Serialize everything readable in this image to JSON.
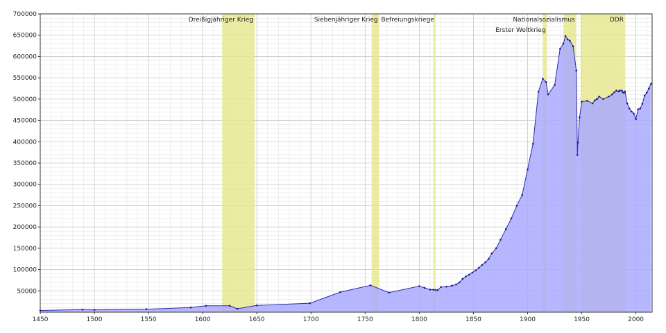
{
  "chart_data": {
    "type": "area",
    "title": "",
    "xlabel": "",
    "ylabel": "",
    "xlim": [
      1450,
      2015
    ],
    "ylim": [
      0,
      700000
    ],
    "grid": true,
    "x_ticks": [
      1450,
      1500,
      1550,
      1600,
      1650,
      1700,
      1750,
      1800,
      1850,
      1900,
      1950,
      2000
    ],
    "y_ticks": [
      50000,
      100000,
      150000,
      200000,
      250000,
      300000,
      350000,
      400000,
      450000,
      500000,
      550000,
      600000,
      650000,
      700000
    ],
    "x_tick_labels": [
      "1450",
      "1500",
      "1550",
      "1600",
      "1650",
      "1700",
      "1750",
      "1800",
      "1850",
      "1900",
      "1950",
      "2000"
    ],
    "y_tick_labels": [
      "50000",
      "100000",
      "150000",
      "200000",
      "250000",
      "300000",
      "350000",
      "400000",
      "450000",
      "500000",
      "550000",
      "600000",
      "650000",
      "700000"
    ],
    "colors": {
      "area_fill": "#aaaaff",
      "line": "#2a2ab0",
      "marker": "#1a1a80",
      "period_fill": "#e6e68c",
      "grid_major": "#c8c8c8",
      "grid_minor": "#e6e6e6"
    },
    "periods": [
      {
        "label": "Dreißigjähriger Krieg",
        "start": 1618,
        "end": 1648,
        "label_row": 1
      },
      {
        "label": "Siebenjähriger Krieg",
        "start": 1756,
        "end": 1763,
        "label_row": 1
      },
      {
        "label": "Befreiungskriege",
        "start": 1813,
        "end": 1815,
        "label_row": 1
      },
      {
        "label": "Nationalsozialismus",
        "start": 1933,
        "end": 1945,
        "label_row": 1
      },
      {
        "label": "Erster Weltkrieg",
        "start": 1914,
        "end": 1918,
        "label_row": 2
      },
      {
        "label": "DDR",
        "start": 1949,
        "end": 1990,
        "label_row": 1
      }
    ],
    "series": [
      {
        "x": [
          1450,
          1489,
          1500,
          1548,
          1589,
          1603,
          1625,
          1632,
          1650,
          1699,
          1727,
          1755,
          1772,
          1800,
          1805,
          1810,
          1813,
          1815,
          1817,
          1820,
          1825,
          1830,
          1834,
          1837,
          1840,
          1843,
          1846,
          1849,
          1852,
          1855,
          1858,
          1861,
          1864,
          1867,
          1871,
          1875,
          1880,
          1885,
          1890,
          1895,
          1900,
          1905,
          1910,
          1914,
          1917,
          1919,
          1925,
          1930,
          1933,
          1935,
          1937,
          1939,
          1942,
          1945,
          1946,
          1946.5,
          1948,
          1950,
          1955,
          1960,
          1962,
          1964,
          1966,
          1970,
          1975,
          1978,
          1980,
          1982,
          1984,
          1985,
          1987,
          1988,
          1989,
          1990,
          1992,
          1994,
          1996,
          1998,
          2000,
          2002,
          2004,
          2006,
          2008,
          2010,
          2012,
          2014
        ],
        "y": [
          4000,
          6000,
          5500,
          7000,
          11000,
          15000,
          15000,
          8000,
          16000,
          21000,
          47000,
          63000,
          46000,
          61000,
          57000,
          53000,
          53000,
          52000,
          52000,
          59000,
          60000,
          62000,
          65000,
          70000,
          78000,
          84000,
          88000,
          93000,
          98000,
          104000,
          111000,
          117000,
          125000,
          138000,
          150000,
          170000,
          195000,
          220000,
          250000,
          275000,
          335000,
          395000,
          517000,
          548000,
          540000,
          511000,
          533000,
          618000,
          630000,
          648000,
          640000,
          637000,
          624000,
          567000,
          369000,
          398000,
          457000,
          494000,
          496000,
          490000,
          497000,
          500000,
          506000,
          500000,
          506000,
          511000,
          516000,
          520000,
          518000,
          520000,
          520000,
          516000,
          515000,
          518000,
          490000,
          478000,
          471000,
          466000,
          453000,
          476000,
          478000,
          489000,
          508000,
          515000,
          525000,
          536000
        ]
      }
    ]
  }
}
